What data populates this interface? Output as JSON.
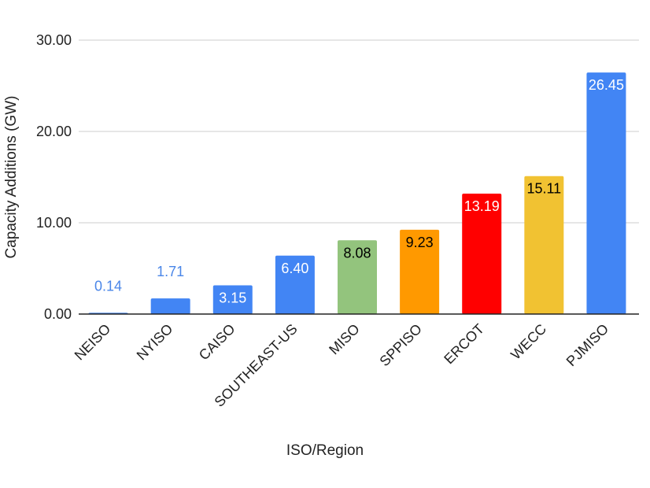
{
  "chart_data": {
    "type": "bar",
    "xlabel": "ISO/Region",
    "ylabel": "Capacity Additions (GW)",
    "ylim": [
      0,
      30
    ],
    "yticks": [
      "0.00",
      "10.00",
      "20.00",
      "30.00"
    ],
    "grid": true,
    "categories": [
      "NEISO",
      "NYISO",
      "CAISO",
      "SOUTHEAST-US",
      "MISO",
      "SPPISO",
      "ERCOT",
      "WECC",
      "PJMISO"
    ],
    "values": [
      0.14,
      1.71,
      3.15,
      6.4,
      8.08,
      9.23,
      13.19,
      15.11,
      26.45
    ],
    "value_labels": [
      "0.14",
      "1.71",
      "3.15",
      "6.40",
      "8.08",
      "9.23",
      "13.19",
      "15.11",
      "26.45"
    ],
    "colors": [
      "#4285f4",
      "#4285f4",
      "#4285f4",
      "#4285f4",
      "#93c47d",
      "#ff9900",
      "#ff0000",
      "#f1c232",
      "#4285f4"
    ],
    "label_colors": [
      "#4a86e8",
      "#4a86e8",
      "#ffffff",
      "#ffffff",
      "#000000",
      "#000000",
      "#ffffff",
      "#000000",
      "#ffffff"
    ],
    "label_outside": [
      true,
      true,
      false,
      false,
      false,
      false,
      false,
      false,
      false
    ]
  }
}
